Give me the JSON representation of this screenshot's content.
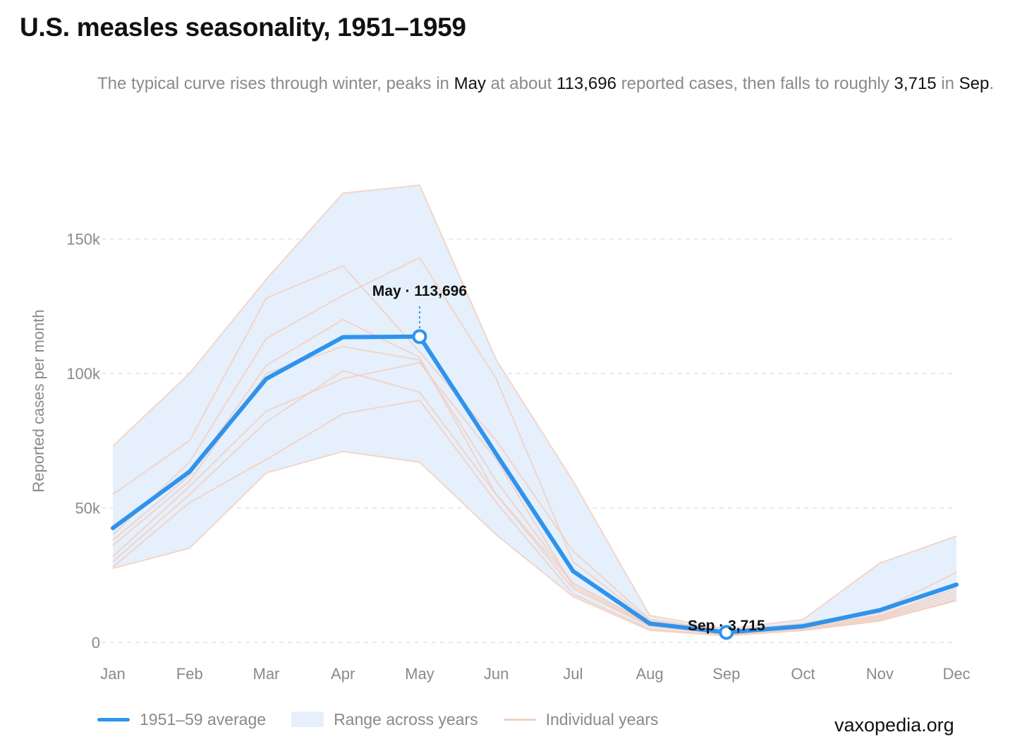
{
  "title": "U.S. measles seasonality, 1951–1959",
  "subtitle": {
    "part1": "The typical curve rises through winter, peaks in ",
    "peak_month": "May",
    "part2": " at about ",
    "peak_value": "113,696",
    "part3": " reported cases, then falls to roughly ",
    "low_value": "3,715",
    "part4": " in ",
    "low_month": "Sep",
    "part5": "."
  },
  "legend": {
    "average": "1951–59 average",
    "range": "Range across years",
    "individual": "Individual years"
  },
  "credit": "vaxopedia.org",
  "colors": {
    "average": "#2f93ee",
    "range": "#e5f0fc",
    "individual": "#f3cfbf",
    "grid": "#e2e2e2",
    "axis_text": "#8a8a8a"
  },
  "chart_data": {
    "type": "line",
    "ylabel": "Reported cases per month",
    "ylim": [
      0,
      175000
    ],
    "yticks": [
      0,
      50000,
      100000,
      150000
    ],
    "ytick_labels": [
      "0",
      "50k",
      "100k",
      "150k"
    ],
    "grid": "horizontal dashed",
    "legend_position": "bottom-left",
    "categories": [
      "Jan",
      "Feb",
      "Mar",
      "Apr",
      "May",
      "Jun",
      "Jul",
      "Aug",
      "Sep",
      "Oct",
      "Nov",
      "Dec"
    ],
    "average": {
      "name": "1951–59 average",
      "values": [
        42500,
        63500,
        98000,
        113500,
        113696,
        70000,
        26500,
        7000,
        3715,
        6000,
        12000,
        21500
      ]
    },
    "range": {
      "name": "Range across years",
      "min": [
        27500,
        35000,
        63000,
        71000,
        67000,
        40000,
        17000,
        4500,
        2500,
        4500,
        8000,
        15500
      ],
      "max": [
        73000,
        100000,
        135000,
        167000,
        170000,
        105000,
        60000,
        10000,
        5000,
        8500,
        29500,
        39500
      ]
    },
    "individual_years": {
      "name": "Individual years",
      "series": [
        [
          73000,
          100000,
          135000,
          167000,
          170000,
          105000,
          60000,
          10000,
          5000,
          8500,
          29500,
          39500
        ],
        [
          55000,
          75000,
          128000,
          140000,
          108000,
          75000,
          34000,
          8500,
          4500,
          7000,
          12000,
          26000
        ],
        [
          40000,
          67000,
          113000,
          129000,
          143000,
          98000,
          30000,
          8000,
          4000,
          6500,
          11000,
          22000
        ],
        [
          38000,
          62000,
          103000,
          120000,
          106000,
          55000,
          22000,
          7000,
          3500,
          6000,
          10000,
          20000
        ],
        [
          36000,
          60000,
          100000,
          110000,
          105000,
          60000,
          22000,
          6500,
          3500,
          5500,
          9500,
          19000
        ],
        [
          32000,
          58000,
          86000,
          98000,
          104000,
          68000,
          21000,
          6000,
          3000,
          5000,
          9000,
          18000
        ],
        [
          30000,
          55000,
          82000,
          101000,
          93000,
          55000,
          20000,
          6000,
          3000,
          5000,
          8500,
          17000
        ],
        [
          28000,
          52000,
          68000,
          85000,
          90000,
          52000,
          18000,
          5000,
          2500,
          4500,
          8000,
          16000
        ],
        [
          27500,
          35000,
          63000,
          71000,
          67000,
          40000,
          17000,
          4500,
          2500,
          4500,
          8000,
          15500
        ]
      ]
    },
    "annotations": [
      {
        "label": "May · 113,696",
        "month": "May",
        "value": 113696
      },
      {
        "label": "Sep · 3,715",
        "month": "Sep",
        "value": 3715
      }
    ]
  }
}
